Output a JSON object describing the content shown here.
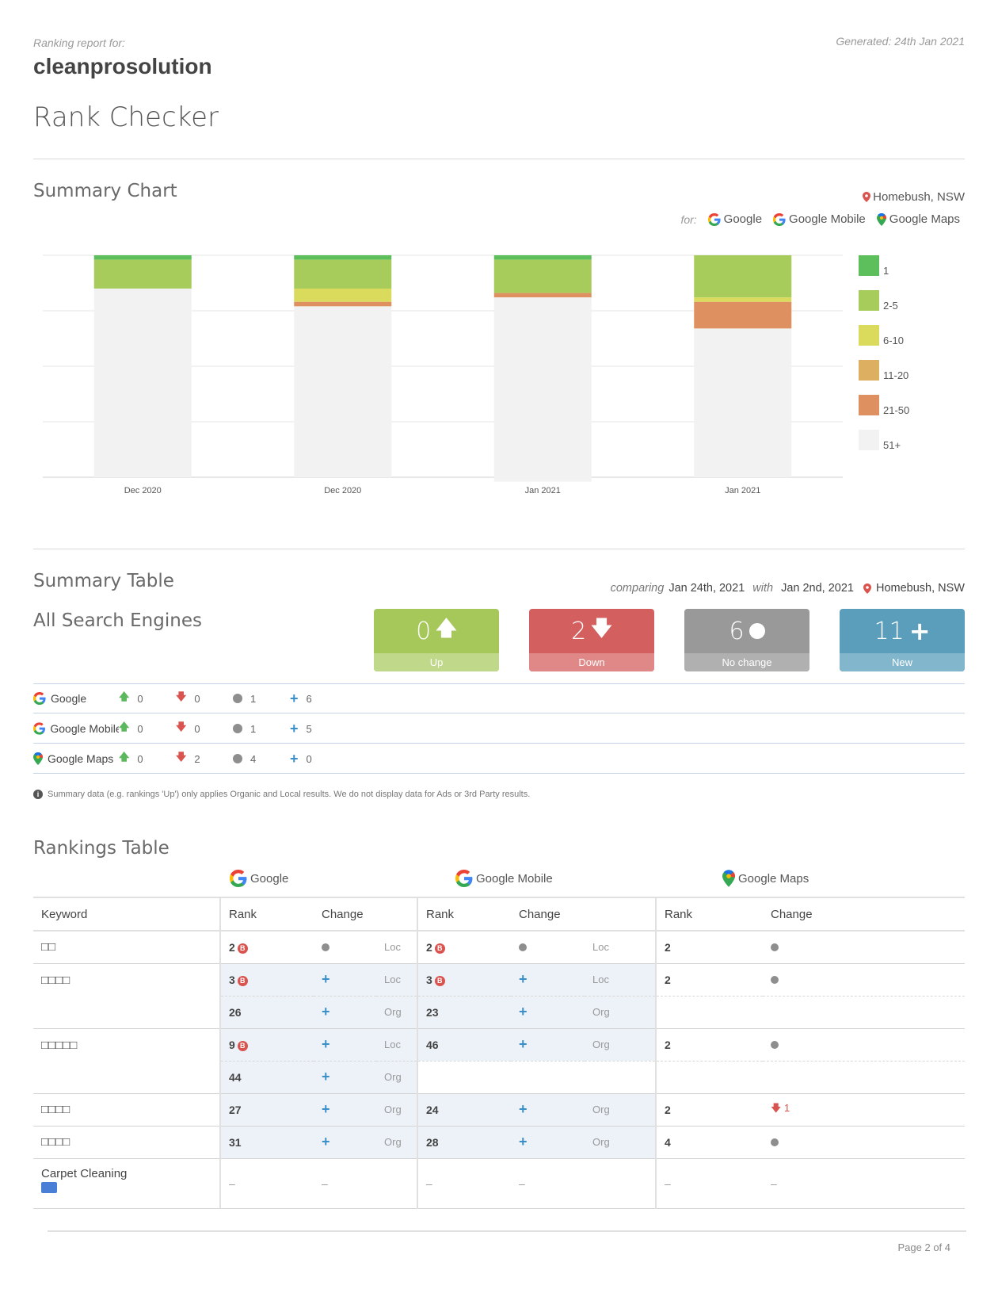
{
  "header": {
    "report_for_label": "Ranking report for:",
    "site": "cleanprosolution",
    "generated": "Generated: 24th Jan 2021",
    "title": "Rank Checker"
  },
  "summary_chart": {
    "title": "Summary Chart",
    "location": "Homebush, NSW",
    "for_label": "for:",
    "engines": [
      "Google",
      "Google Mobile",
      "Google Maps"
    ]
  },
  "chart_data": {
    "type": "bar",
    "stacked": true,
    "categories": [
      "Dec 2020",
      "Dec 2020",
      "Jan 2021",
      "Jan 2021"
    ],
    "ylim": [
      0,
      100
    ],
    "grid": true,
    "legend_position": "right",
    "series": [
      {
        "name": "1",
        "color": "#5cbf5c",
        "values": [
          2,
          2,
          2,
          0
        ]
      },
      {
        "name": "2-5",
        "color": "#a8cc5c",
        "values": [
          13,
          13,
          15,
          19
        ]
      },
      {
        "name": "6-10",
        "color": "#dada5c",
        "values": [
          0,
          6,
          0,
          2
        ]
      },
      {
        "name": "11-20",
        "color": "#dcb060",
        "values": [
          0,
          0,
          0,
          0
        ]
      },
      {
        "name": "21-50",
        "color": "#de9060",
        "values": [
          0,
          2,
          2,
          12
        ]
      },
      {
        "name": "51+",
        "color": "#f2f2f2",
        "values": [
          85,
          77,
          83,
          67
        ]
      }
    ]
  },
  "summary_table": {
    "title": "Summary Table",
    "comparing_label": "comparing",
    "date_from": "Jan 24th, 2021",
    "with_label": "with",
    "date_to": "Jan 2nd, 2021",
    "location": "Homebush, NSW",
    "subtitle": "All Search Engines",
    "boxes": [
      {
        "value": "0",
        "label": "Up",
        "color": "#a6c85a",
        "color_bottom": "#bfd88a"
      },
      {
        "value": "2",
        "label": "Down",
        "color": "#d45f5f",
        "color_bottom": "#e08787"
      },
      {
        "value": "6",
        "label": "No change",
        "color": "#999999",
        "color_bottom": "#b0b0b0"
      },
      {
        "value": "11",
        "label": "New",
        "color": "#5a9ebb",
        "color_bottom": "#82b6cc"
      }
    ],
    "engines": [
      {
        "name": "Google",
        "up": "0",
        "down": "0",
        "same": "1",
        "new": "6"
      },
      {
        "name": "Google Mobile",
        "up": "0",
        "down": "0",
        "same": "1",
        "new": "5"
      },
      {
        "name": "Google Maps",
        "up": "0",
        "down": "2",
        "same": "4",
        "new": "0"
      }
    ],
    "note": "Summary data (e.g. rankings 'Up') only applies Organic and Local results. We do not display data for Ads or 3rd Party results."
  },
  "rankings": {
    "title": "Rankings Table",
    "engines": [
      "Google",
      "Google Mobile",
      "Google Maps"
    ],
    "headers": {
      "keyword": "Keyword",
      "rank": "Rank",
      "change": "Change"
    },
    "rows": [
      {
        "keyword": "□□",
        "g_rank": "2",
        "g_type": "Loc",
        "m_rank": "2",
        "m_type": "Loc",
        "maps_rank": "2"
      },
      {
        "keyword": "□□□□",
        "g_rank": "3",
        "g_type": "Loc",
        "m_rank": "3",
        "m_type": "Loc",
        "maps_rank": "2",
        "g_rank2": "26",
        "g_type2": "Org",
        "m_rank2": "23",
        "m_type2": "Org"
      },
      {
        "keyword": "□□□□□",
        "g_rank": "9",
        "g_type": "Loc",
        "m_rank": "46",
        "m_type": "Org",
        "maps_rank": "2",
        "g_rank2": "44",
        "g_type2": "Org"
      },
      {
        "keyword": "□□□□",
        "g_rank": "27",
        "g_type": "Org",
        "m_rank": "24",
        "m_type": "Org",
        "maps_rank": "2",
        "maps_change": "1"
      },
      {
        "keyword": "□□□□",
        "g_rank": "31",
        "g_type": "Org",
        "m_rank": "28",
        "m_type": "Org",
        "maps_rank": "4"
      },
      {
        "keyword": "Carpet Cleaning",
        "dash": "–"
      }
    ],
    "badge_letter": "B"
  },
  "footer": {
    "page": "Page 2 of 4"
  }
}
